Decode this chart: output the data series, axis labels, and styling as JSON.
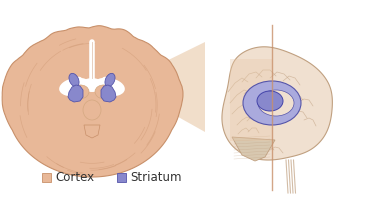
{
  "cortex_color": "#E8B898",
  "cortex_color_dark": "#C8906A",
  "cortex_color_mid": "#D4A880",
  "striatum_color": "#8888CC",
  "striatum_color_light": "#AAAADD",
  "bg_color": "#FFFFFF",
  "brain_outline_color": "#B88868",
  "brain_lat_fill": "#F0E0D0",
  "brain_lat_outline": "#C0A080",
  "legend_cortex_label": "Cortex",
  "legend_striatum_label": "Striatum",
  "legend_fontsize": 8.5,
  "connector_color": "#E8C8A8",
  "white_matter": "#FFFFFF",
  "inner_cortex": "#DDA878"
}
